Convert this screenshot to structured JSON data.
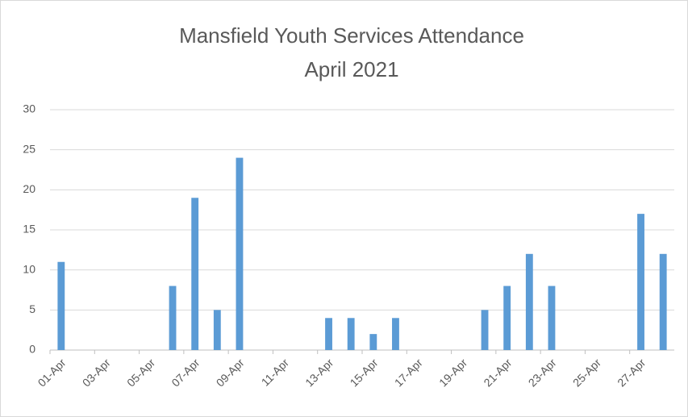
{
  "chart_data": {
    "type": "bar",
    "title": "Mansfield Youth Services Attendance",
    "subtitle": "April 2021",
    "categories": [
      "01-Apr",
      null,
      "03-Apr",
      null,
      "05-Apr",
      null,
      "07-Apr",
      null,
      "09-Apr",
      null,
      "11-Apr",
      null,
      "13-Apr",
      null,
      "15-Apr",
      null,
      "17-Apr",
      null,
      "19-Apr",
      null,
      "21-Apr",
      null,
      "23-Apr",
      null,
      "25-Apr",
      null,
      "27-Apr",
      null
    ],
    "values": [
      11,
      0,
      0,
      0,
      0,
      8,
      19,
      5,
      24,
      0,
      0,
      0,
      4,
      4,
      2,
      4,
      0,
      0,
      0,
      5,
      8,
      12,
      8,
      0,
      0,
      0,
      17,
      12
    ],
    "color": "#5b9bd5",
    "ylim": [
      0,
      30
    ],
    "yticks": [
      0,
      5,
      10,
      15,
      20,
      25,
      30
    ],
    "grid": true
  }
}
